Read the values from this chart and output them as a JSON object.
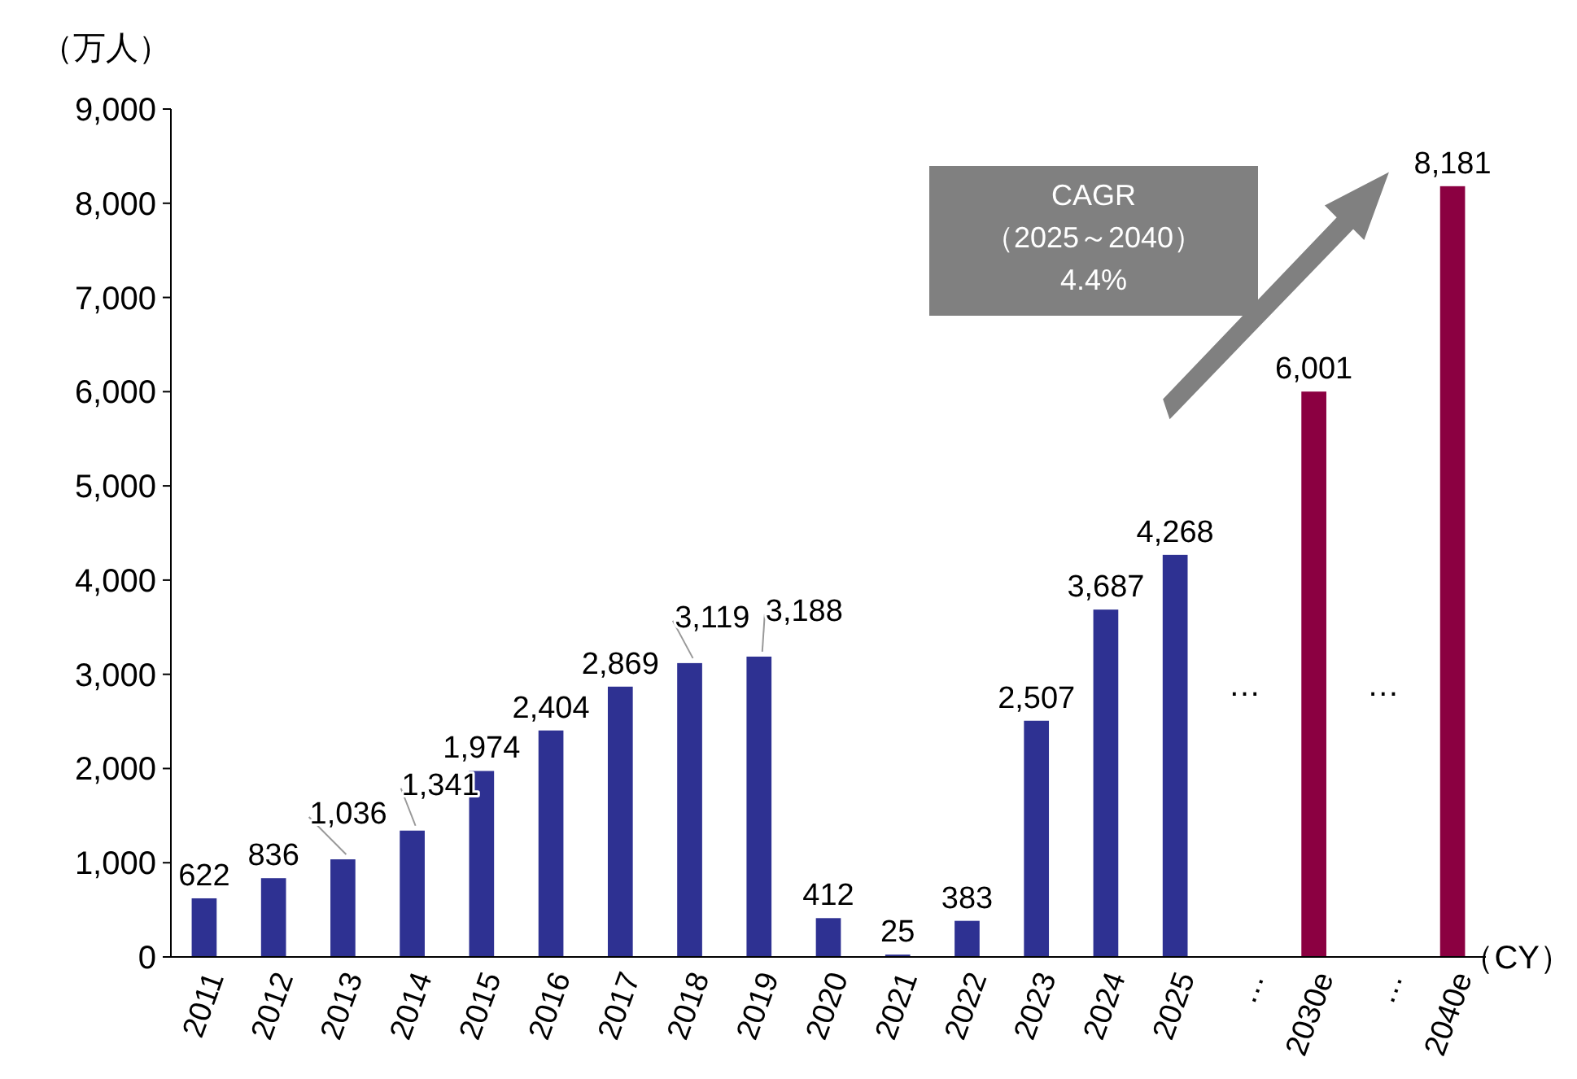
{
  "chart_data": {
    "type": "bar",
    "ylabel": "（万人）",
    "xlabel": "（CY）",
    "categories": [
      "2011",
      "2012",
      "2013",
      "2014",
      "2015",
      "2016",
      "2017",
      "2018",
      "2019",
      "2020",
      "2021",
      "2022",
      "2023",
      "2024",
      "2025",
      "…",
      "2030e",
      "…",
      "2040e"
    ],
    "values": [
      622,
      836,
      1036,
      1341,
      1974,
      2404,
      2869,
      3119,
      3188,
      412,
      25,
      383,
      2507,
      3687,
      4268,
      null,
      6001,
      null,
      8181
    ],
    "colors": [
      "#2e3192",
      "#2e3192",
      "#2e3192",
      "#2e3192",
      "#2e3192",
      "#2e3192",
      "#2e3192",
      "#2e3192",
      "#2e3192",
      "#2e3192",
      "#2e3192",
      "#2e3192",
      "#2e3192",
      "#2e3192",
      "#2e3192",
      null,
      "#8b0041",
      null,
      "#8b0041"
    ],
    "value_labels": [
      "622",
      "836",
      "1,036",
      "1,341",
      "1,974",
      "2,404",
      "2,869",
      "3,119",
      "3,188",
      "412",
      "25",
      "383",
      "2,507",
      "3,687",
      "4,268",
      null,
      "6,001",
      null,
      "8,181"
    ],
    "ylim": [
      0,
      9000
    ],
    "yticks": [
      0,
      {
        "value": 1000,
        "label": "1,000"
      },
      {
        "value": 2000,
        "label": "2,000"
      },
      {
        "value": 3000,
        "label": "3,000"
      },
      {
        "value": 4000,
        "label": "4,000"
      },
      {
        "value": 5000,
        "label": "5,000"
      },
      {
        "value": 6000,
        "label": "6,000"
      },
      {
        "value": 7000,
        "label": "7,000"
      },
      {
        "value": 8000,
        "label": "8,000"
      },
      {
        "value": 9000,
        "label": "9,000"
      }
    ],
    "grid": false,
    "annotations": [
      "…",
      "…",
      "CAGR\n（2025～2040）\n4.4%"
    ]
  }
}
